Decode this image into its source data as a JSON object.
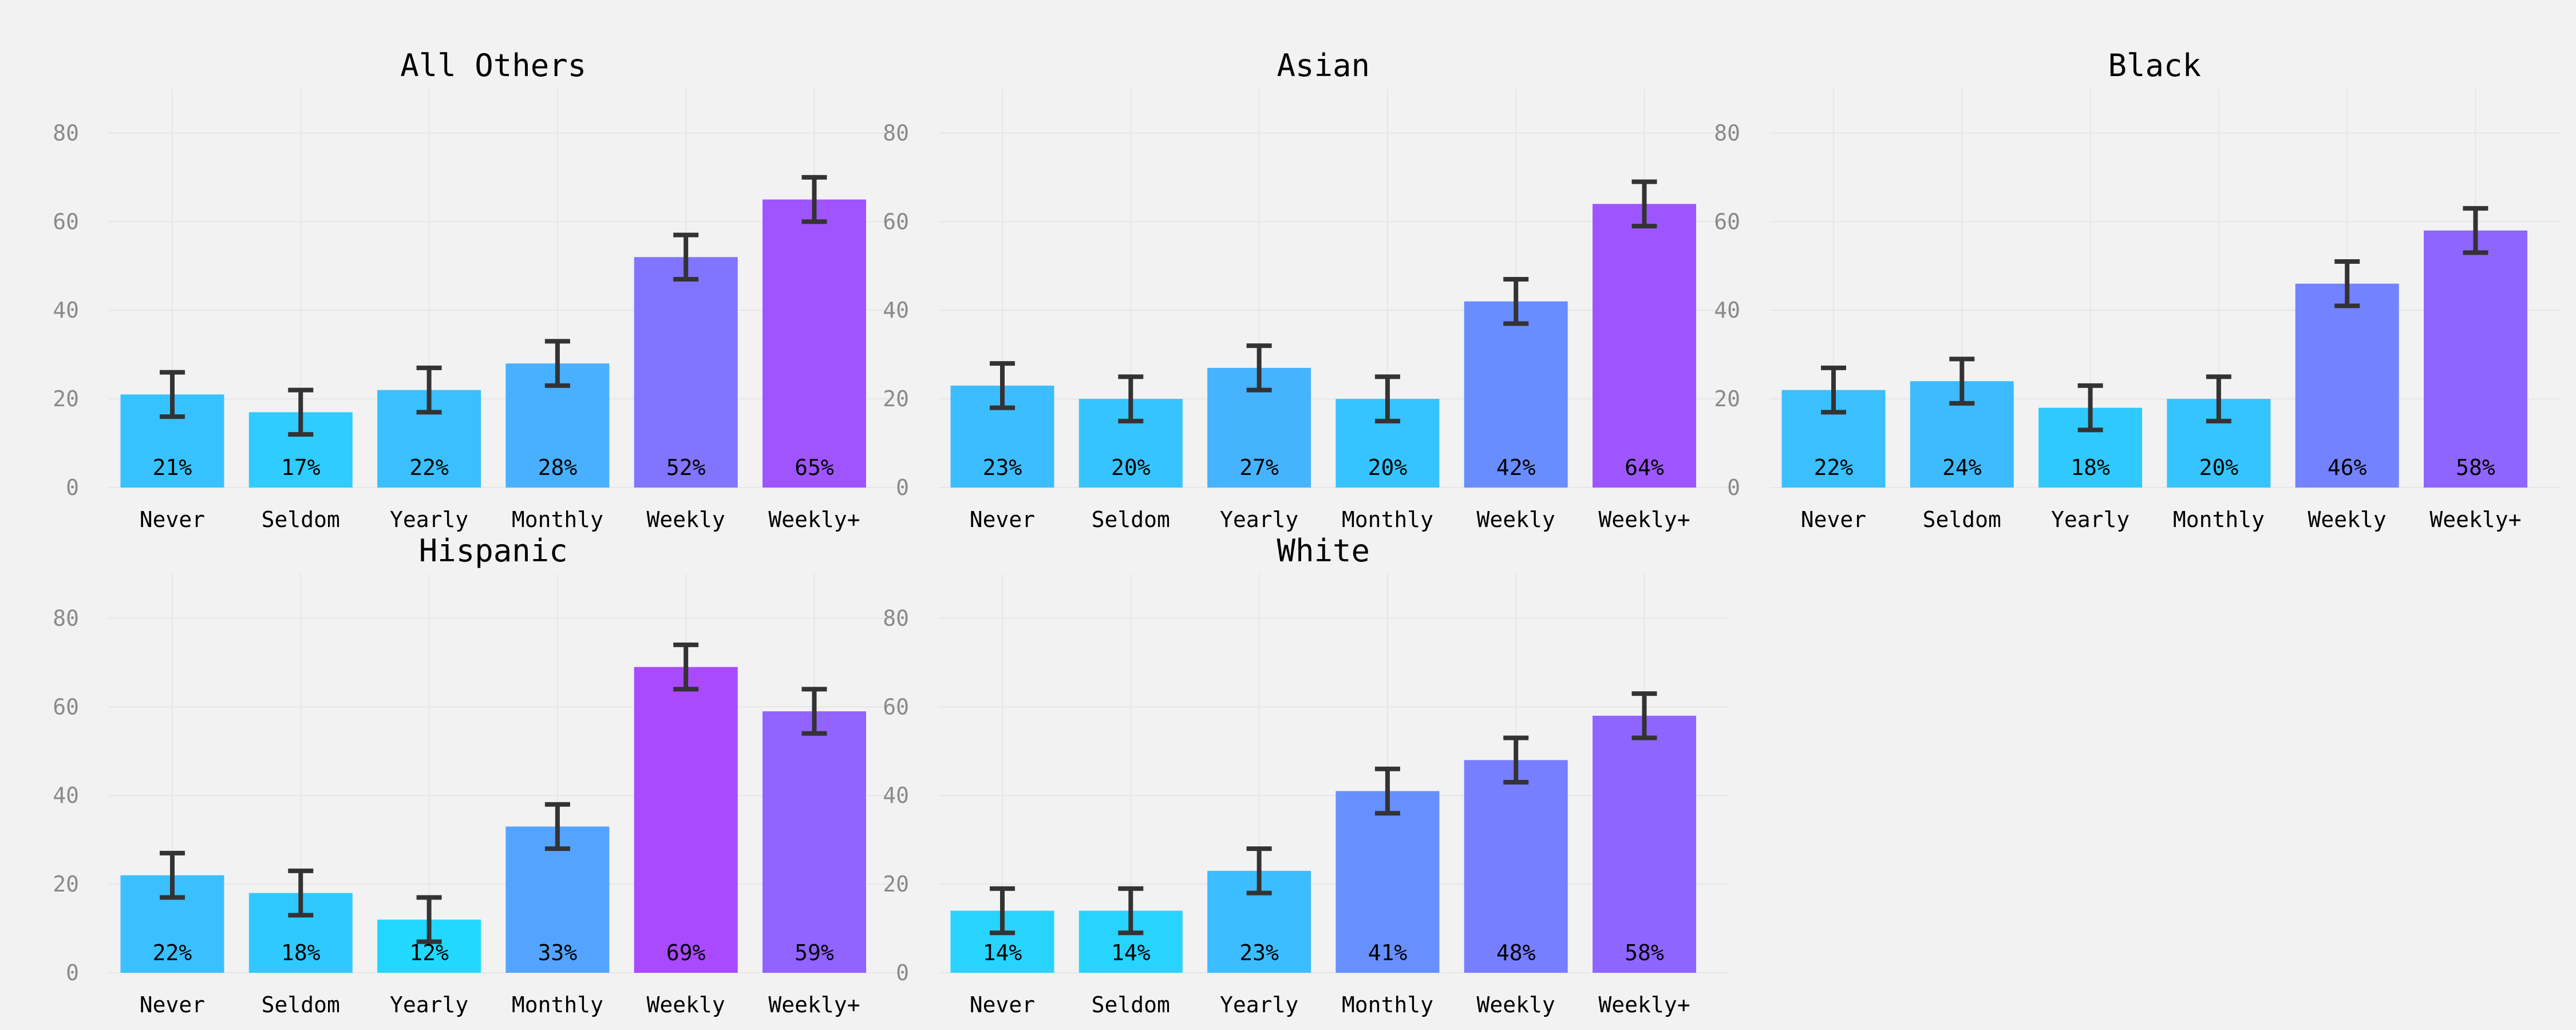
{
  "chart_data": {
    "type": "bar",
    "layout": "facet-grid 2x3",
    "categories": [
      "Never",
      "Seldom",
      "Yearly",
      "Monthly",
      "Weekly",
      "Weekly+"
    ],
    "ylim": [
      0,
      90
    ],
    "yticks": [
      0,
      20,
      40,
      60,
      80
    ],
    "value_suffix": "%",
    "error_bar_halfwidth": 5,
    "grid": true,
    "legend": "none",
    "colors": {
      "background": "#f2f2f2",
      "error_bar": "#333333",
      "gradient_low": "#22d8ff",
      "gradient_high": "#a94aff"
    },
    "panels": [
      {
        "title": "All Others",
        "values": [
          21,
          17,
          22,
          28,
          52,
          65
        ]
      },
      {
        "title": "Asian",
        "values": [
          23,
          20,
          27,
          20,
          42,
          64
        ]
      },
      {
        "title": "Black",
        "values": [
          22,
          24,
          18,
          20,
          46,
          58
        ]
      },
      {
        "title": "Hispanic",
        "values": [
          22,
          18,
          12,
          33,
          69,
          59
        ]
      },
      {
        "title": "White",
        "values": [
          14,
          14,
          23,
          41,
          48,
          58
        ]
      }
    ]
  }
}
